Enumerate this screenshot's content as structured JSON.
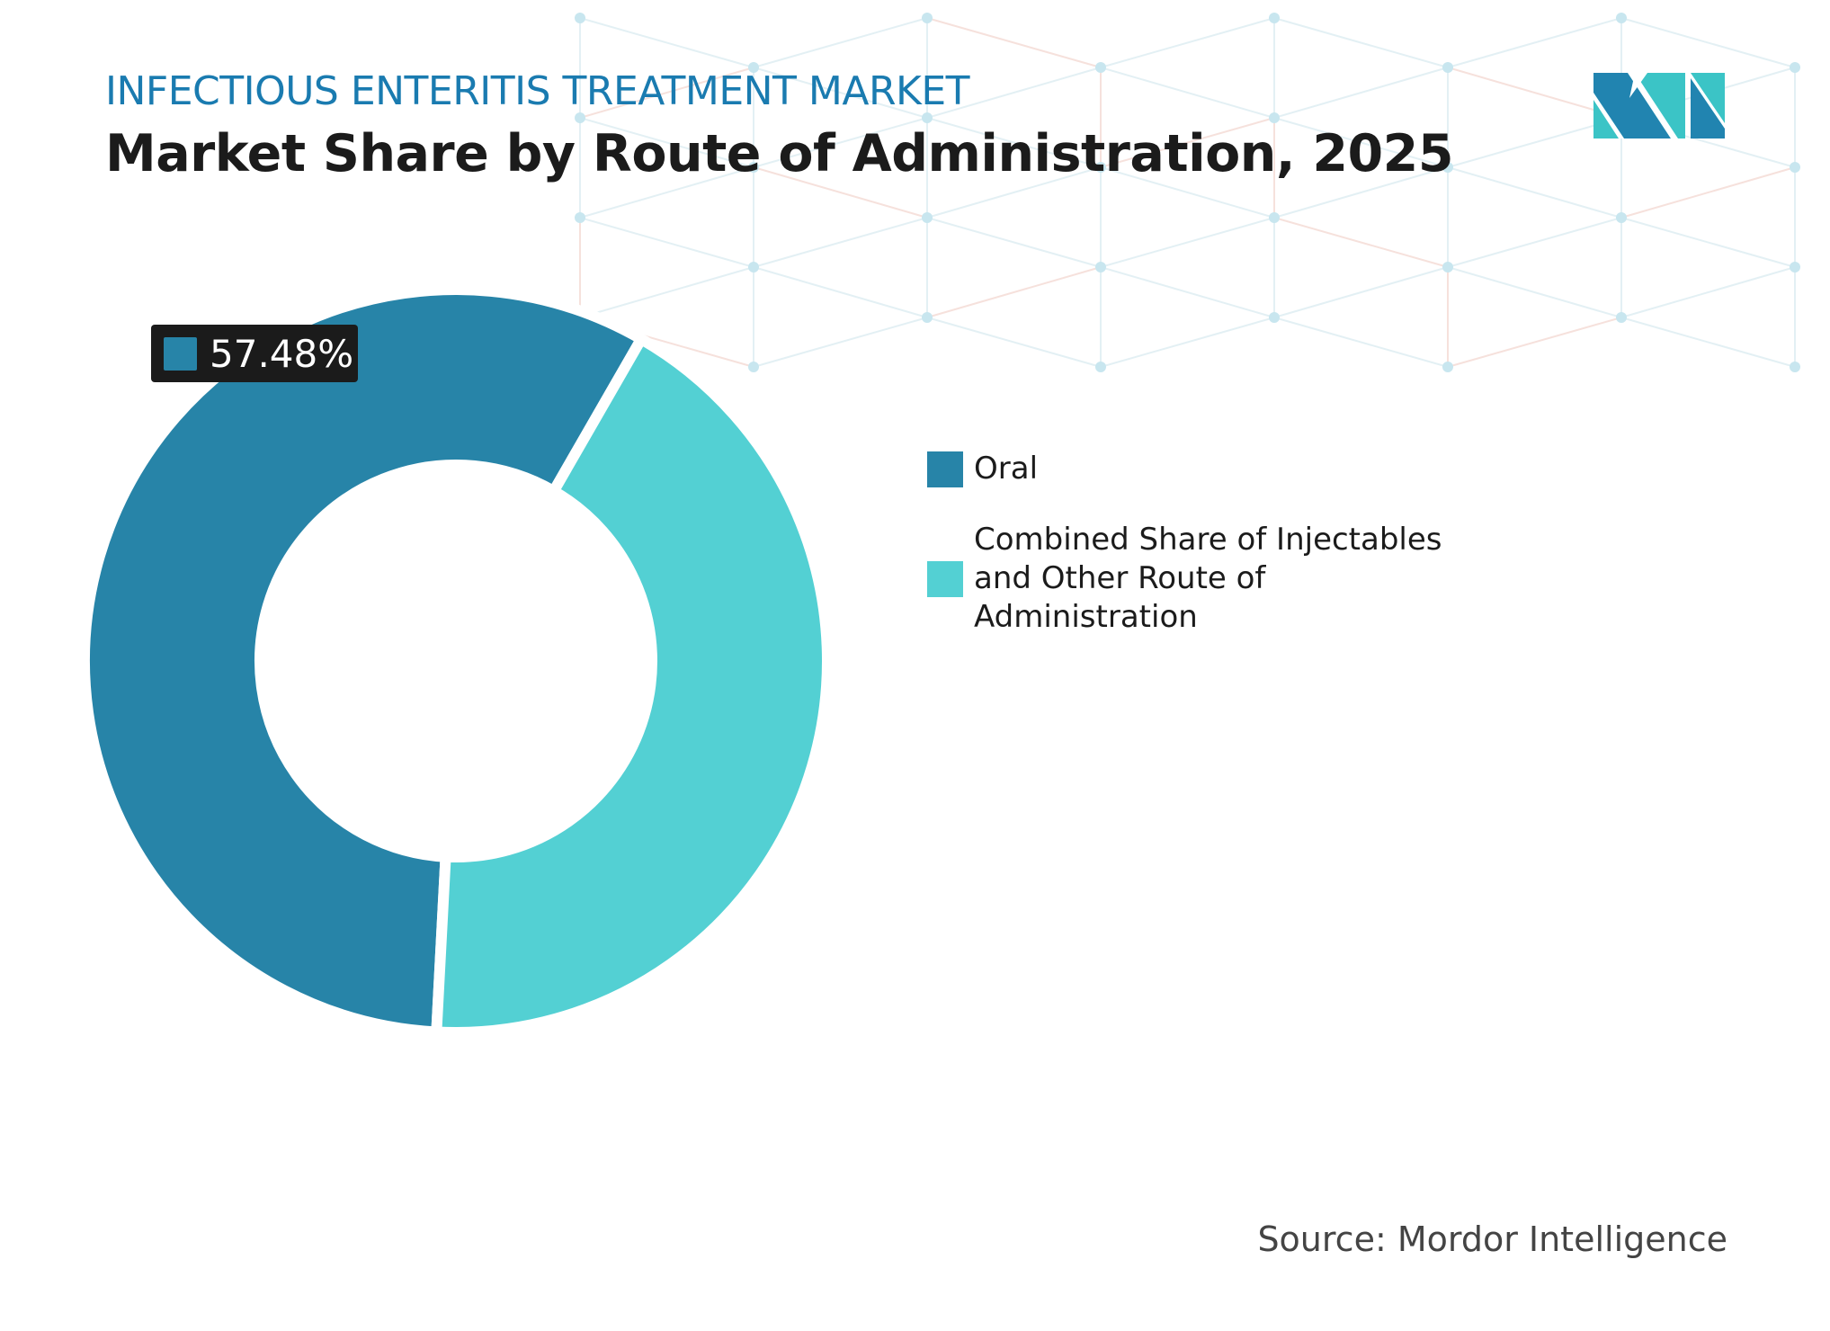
{
  "header": {
    "subtitle": "INFECTIOUS ENTERITIS TREATMENT MARKET",
    "title": "Market Share by Route of Administration, 2025"
  },
  "chart_data": {
    "type": "pie",
    "style": "donut",
    "categories": [
      "Oral",
      "Combined Share of Injectables and Other Route of Administration"
    ],
    "values": [
      57.48,
      42.52
    ],
    "colors": [
      "#2784a8",
      "#53d0d3"
    ],
    "data_labels": [
      {
        "category": "Oral",
        "text": "57.48%"
      }
    ],
    "legend_placement": "right"
  },
  "source": "Source: Mordor Intelligence",
  "brand": {
    "logo": "MI",
    "colors": [
      "#2184b0",
      "#3bc4c6"
    ]
  }
}
